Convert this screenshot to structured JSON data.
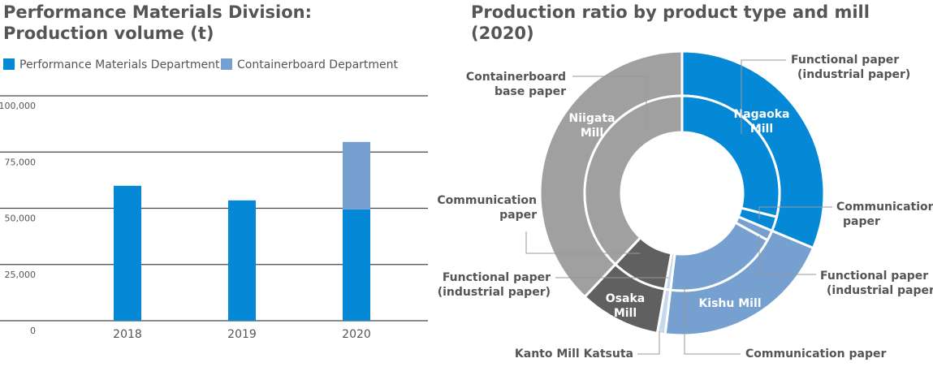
{
  "chart_data": [
    {
      "type": "bar",
      "title": "Performance Materials Division:\nProduction volume (t)",
      "categories": [
        "2018",
        "2019",
        "2020"
      ],
      "series": [
        {
          "name": "Performance Materials Department",
          "color": "#0589d6",
          "values": [
            60000,
            53500,
            49500
          ]
        },
        {
          "name": "Containerboard Department",
          "color": "#75a0cf",
          "values": [
            0,
            0,
            30000
          ]
        }
      ],
      "ylim": [
        0,
        100000
      ],
      "yticks": [
        "0",
        "25,000",
        "50,000",
        "75,000",
        "100,000"
      ],
      "ytick_values": [
        0,
        25000,
        50000,
        75000,
        100000
      ],
      "grid": true,
      "legend": "top-left"
    },
    {
      "type": "pie",
      "title": "Production ratio by product type and mill (2020)",
      "outer": [
        {
          "label": "Nagaoka Mill",
          "percent": 31.3,
          "color": "#0589d6"
        },
        {
          "label": "Kishu Mill",
          "percent": 20.6,
          "color": "#75a0cf"
        },
        {
          "label": "Kanto Mill Katsuta",
          "percent": 0.9,
          "color": "#c8d8ec"
        },
        {
          "label": "Osaka Mill",
          "percent": 9.2,
          "color": "#606060"
        },
        {
          "label": "Niigata Mill",
          "percent": 38.0,
          "color": "#a0a0a0"
        }
      ],
      "inner": [
        {
          "label": "Functional paper (industrial paper)",
          "percent": 28.9,
          "color": "#0589d6"
        },
        {
          "label": "Communication paper",
          "percent": 2.4,
          "color": "#0589d6"
        },
        {
          "label": "Functional paper (industrial paper)",
          "percent": 1.7,
          "color": "#75a0cf"
        },
        {
          "label": "Communication paper",
          "percent": 18.9,
          "color": "#75a0cf"
        },
        {
          "label": "Functional paper (industrial paper)",
          "percent": 0.9,
          "color": "#c8d8ec"
        },
        {
          "label": "Communication paper",
          "percent": 9.2,
          "color": "#606060"
        },
        {
          "label": "Containerboard base paper",
          "percent": 38.0,
          "color": "#a0a0a0"
        }
      ],
      "callouts": [
        "Functional paper\n(industrial paper)",
        "Communication\npaper",
        "Functional paper\n(industrial paper)",
        "Communication paper",
        "Kanto Mill Katsuta",
        "Functional paper\n(industrial paper)",
        "Communication\npaper",
        "Containerboard\nbase paper"
      ]
    }
  ]
}
